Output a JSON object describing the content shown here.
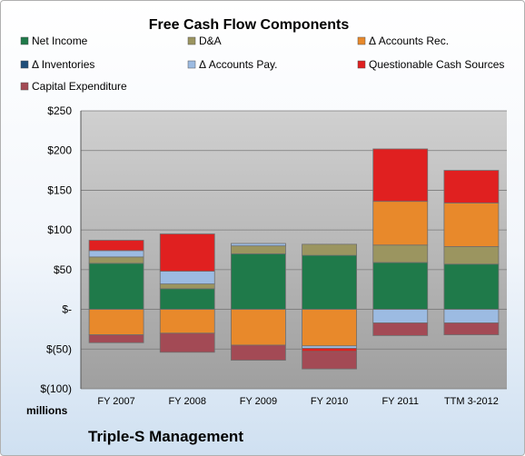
{
  "chart_data": {
    "type": "bar",
    "stacked": true,
    "title": "Free Cash Flow Components",
    "ylabel": "",
    "y_unit_label": "millions",
    "ylim": [
      -100,
      250
    ],
    "yticks": [
      250,
      200,
      150,
      100,
      50,
      0,
      -50,
      -100
    ],
    "ytick_labels": [
      "$250",
      "$200",
      "$150",
      "$100",
      "$50",
      "$-",
      "$(50)",
      "$(100)"
    ],
    "grid": true,
    "legend_position": "top",
    "categories": [
      "FY 2007",
      "FY 2008",
      "FY 2009",
      "FY 2010",
      "FY 2011",
      "TTM 3-2012"
    ],
    "series": [
      {
        "name": "Net Income",
        "color": "#1f7a4a",
        "values": [
          58,
          26,
          70,
          68,
          59,
          57
        ]
      },
      {
        "name": "D&A",
        "color": "#9b9560",
        "values": [
          8,
          6,
          10,
          14,
          22,
          22
        ]
      },
      {
        "name": "Δ Accounts Rec.",
        "color": "#e8892b",
        "values": [
          -32,
          -30,
          -45,
          -46,
          55,
          55
        ]
      },
      {
        "name": "Δ Inventories",
        "color": "#1f4e79",
        "values": [
          0,
          0,
          0,
          0,
          0,
          0
        ]
      },
      {
        "name": "Δ Accounts Pay.",
        "color": "#9cbbe2",
        "values": [
          8,
          16,
          3,
          -3,
          -17,
          -17
        ]
      },
      {
        "name": "Questionable Cash Sources",
        "color": "#e02020",
        "values": [
          13,
          47,
          0,
          -4,
          66,
          41
        ]
      },
      {
        "name": "Capital Expenditure",
        "color": "#a34a55",
        "values": [
          -10,
          -24,
          -19,
          -22,
          -16,
          -15
        ]
      }
    ]
  },
  "footer": {
    "company": "Triple-S Management"
  }
}
